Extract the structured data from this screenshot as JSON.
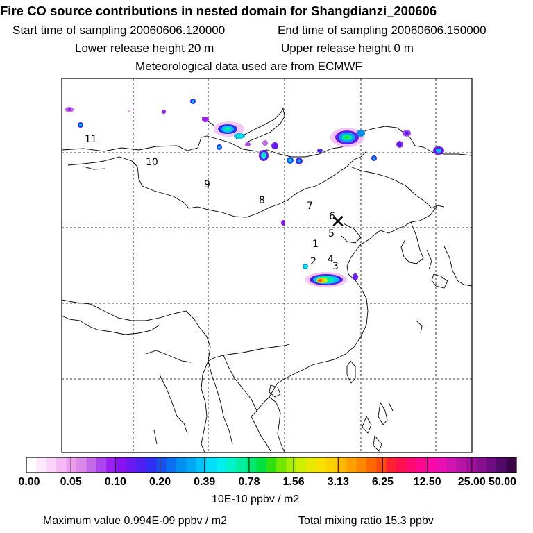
{
  "header": {
    "title": "Fire CO source contributions in nested domain for Shangdianzi_200606",
    "start_time": "Start time of sampling 20060606.120000",
    "end_time": "End time of sampling 20060606.150000",
    "lower_release": "Lower release height   20 m",
    "upper_release": "Upper release height    0 m",
    "met_data": "Meteorological data used are from ECMWF"
  },
  "map": {
    "receptor_symbol": "✕",
    "trajectory_labels": [
      "1",
      "2",
      "3",
      "4",
      "5",
      "6",
      "7",
      "8",
      "9",
      "10",
      "11"
    ]
  },
  "colorbar": {
    "labels": [
      "0.00",
      "0.05",
      "0.10",
      "0.20",
      "0.39",
      "0.78",
      "1.56",
      "3.13",
      "6.25",
      "12.50",
      "25.00",
      "50.00"
    ],
    "unit": "10E-10 ppbv / m2",
    "colors": [
      "#ffffff",
      "#fde8fd",
      "#fad4fa",
      "#f5b9f5",
      "#ee9cee",
      "#d98ae8",
      "#c46ae8",
      "#ad45ee",
      "#9b1ff0",
      "#8a12f0",
      "#6a1af0",
      "#4b20f0",
      "#2d30f0",
      "#1850f0",
      "#0a70f0",
      "#0090f0",
      "#00a8f4",
      "#00c4f8",
      "#00ddf8",
      "#00f0f0",
      "#00f4c8",
      "#00f0a0",
      "#00e870",
      "#00e040",
      "#30e010",
      "#70e800",
      "#a8f000",
      "#d0f000",
      "#e8e800",
      "#f8e000",
      "#ffd000",
      "#ffb800",
      "#ffa000",
      "#ff8800",
      "#ff6a00",
      "#ff4a10",
      "#ff2030",
      "#ff1050",
      "#ff0a70",
      "#ff0890",
      "#f80aa8",
      "#e810b0",
      "#d014b0",
      "#b814a8",
      "#a0129c",
      "#861090",
      "#6c0c80",
      "#520866",
      "#3a0648"
    ]
  },
  "stats": {
    "max_value": "Maximum value  0.994E-09 ppbv / m2",
    "total_mixing": "Total mixing ratio       15.3 ppbv"
  }
}
